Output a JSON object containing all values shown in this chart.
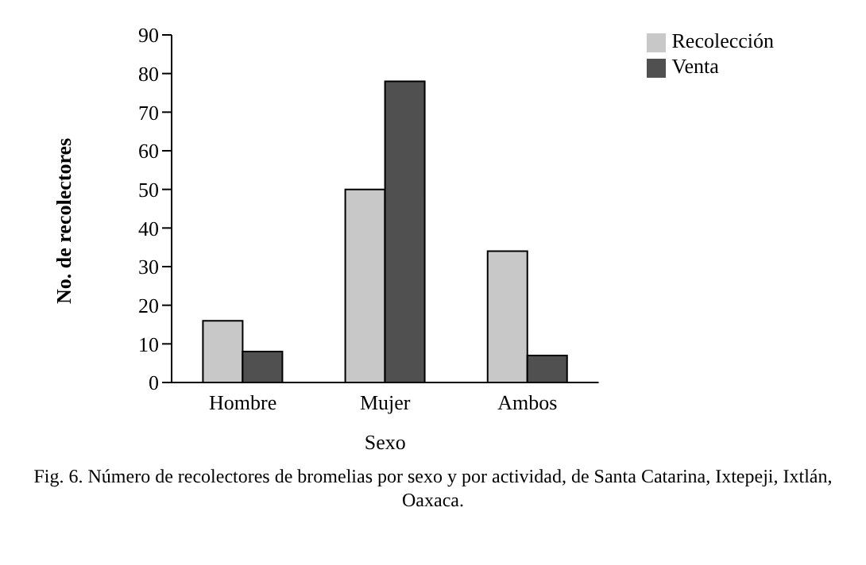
{
  "chart_data": {
    "type": "bar",
    "categories": [
      "Hombre",
      "Mujer",
      "Ambos"
    ],
    "series": [
      {
        "name": "Recolección",
        "color": "#c8c8c8",
        "values": [
          16,
          50,
          34
        ]
      },
      {
        "name": "Venta",
        "color": "#505050",
        "values": [
          8,
          78,
          7
        ]
      }
    ],
    "xlabel": "Sexo",
    "ylabel": "No. de recolectores",
    "ylim": [
      0,
      90
    ],
    "yticks": [
      0,
      10,
      20,
      30,
      40,
      50,
      60,
      70,
      80,
      90
    ],
    "grid": false,
    "legend": "top right",
    "annotations": [
      "Fig. 6. Número de recolectores de bromelias por sexo  y por actividad, de Santa Catarina, Ixtepeji, Ixtlán, Oaxaca."
    ]
  }
}
